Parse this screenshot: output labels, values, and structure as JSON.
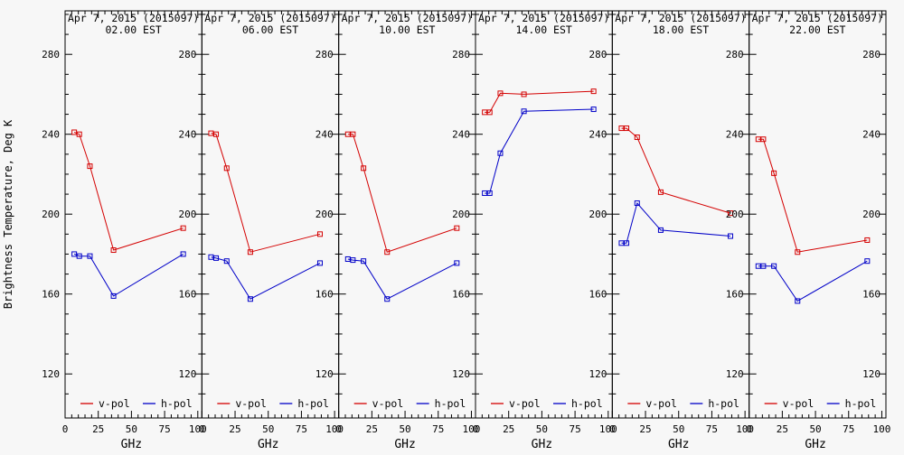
{
  "figure": {
    "ylabel": "Brightness Temperature, Deg K",
    "xlabel": "GHz",
    "legend": {
      "vpol_label": "v-pol",
      "hpol_label": "h-pol"
    },
    "colors": {
      "vpol": "#d40000",
      "hpol": "#0000c8",
      "frame": "#000000",
      "background": "#f7f7f7",
      "text": "#000000"
    }
  },
  "chart_data": [
    {
      "type": "line",
      "title": "Apr  7, 2015 (2015097)",
      "subtitle": "02.00 EST",
      "xlabel": "GHz",
      "ylabel": "Brightness Temperature, Deg K",
      "x": [
        6.9,
        10.7,
        18.7,
        36.5,
        89.0
      ],
      "xlim": [
        0,
        100
      ],
      "ylim": [
        100,
        300
      ],
      "xticks": [
        0,
        25,
        50,
        75,
        100
      ],
      "yticks": [
        120,
        160,
        200,
        240,
        280
      ],
      "legend_position": "bottom-inside",
      "grid": false,
      "series": [
        {
          "name": "v-pol",
          "color": "#d40000",
          "values": [
            241,
            240,
            224,
            182,
            193
          ]
        },
        {
          "name": "h-pol",
          "color": "#0000c8",
          "values": [
            180,
            179,
            179,
            159,
            180
          ]
        }
      ]
    },
    {
      "type": "line",
      "title": "Apr  7, 2015 (2015097)",
      "subtitle": "06.00 EST",
      "xlabel": "GHz",
      "ylabel": "Brightness Temperature, Deg K",
      "x": [
        6.9,
        10.7,
        18.7,
        36.5,
        89.0
      ],
      "xlim": [
        0,
        100
      ],
      "ylim": [
        100,
        300
      ],
      "xticks": [
        0,
        25,
        50,
        75,
        100
      ],
      "yticks": [
        120,
        160,
        200,
        240,
        280
      ],
      "legend_position": "bottom-inside",
      "grid": false,
      "series": [
        {
          "name": "v-pol",
          "color": "#d40000",
          "values": [
            240.5,
            240,
            223,
            181,
            190
          ]
        },
        {
          "name": "h-pol",
          "color": "#0000c8",
          "values": [
            178.5,
            178,
            176.5,
            157.5,
            175.5
          ]
        }
      ]
    },
    {
      "type": "line",
      "title": "Apr  7, 2015 (2015097)",
      "subtitle": "10.00 EST",
      "xlabel": "GHz",
      "ylabel": "Brightness Temperature, Deg K",
      "x": [
        6.9,
        10.7,
        18.7,
        36.5,
        89.0
      ],
      "xlim": [
        0,
        100
      ],
      "ylim": [
        100,
        300
      ],
      "xticks": [
        0,
        25,
        50,
        75,
        100
      ],
      "yticks": [
        120,
        160,
        200,
        240,
        280
      ],
      "legend_position": "bottom-inside",
      "grid": false,
      "series": [
        {
          "name": "v-pol",
          "color": "#d40000",
          "values": [
            240,
            240,
            223,
            181,
            193
          ]
        },
        {
          "name": "h-pol",
          "color": "#0000c8",
          "values": [
            177.5,
            177,
            176.5,
            157.5,
            175.5
          ]
        }
      ]
    },
    {
      "type": "line",
      "title": "Apr  7, 2015 (2015097)",
      "subtitle": "14.00 EST",
      "xlabel": "GHz",
      "ylabel": "Brightness Temperature, Deg K",
      "x": [
        6.9,
        10.7,
        18.7,
        36.5,
        89.0
      ],
      "xlim": [
        0,
        100
      ],
      "ylim": [
        100,
        300
      ],
      "xticks": [
        0,
        25,
        50,
        75,
        100
      ],
      "yticks": [
        120,
        160,
        200,
        240,
        280
      ],
      "legend_position": "bottom-inside",
      "grid": false,
      "series": [
        {
          "name": "v-pol",
          "color": "#d40000",
          "values": [
            251,
            251,
            260.5,
            260,
            261.5
          ]
        },
        {
          "name": "h-pol",
          "color": "#0000c8",
          "values": [
            210.5,
            210.5,
            230.5,
            251.5,
            252.5
          ]
        }
      ]
    },
    {
      "type": "line",
      "title": "Apr  7, 2015 (2015097)",
      "subtitle": "18.00 EST",
      "xlabel": "GHz",
      "ylabel": "Brightness Temperature, Deg K",
      "x": [
        6.9,
        10.7,
        18.7,
        36.5,
        89.0
      ],
      "xlim": [
        0,
        100
      ],
      "ylim": [
        100,
        300
      ],
      "xticks": [
        0,
        25,
        50,
        75,
        100
      ],
      "yticks": [
        120,
        160,
        200,
        240,
        280
      ],
      "legend_position": "bottom-inside",
      "grid": false,
      "series": [
        {
          "name": "v-pol",
          "color": "#d40000",
          "values": [
            243,
            243,
            238.5,
            211,
            200.5
          ]
        },
        {
          "name": "h-pol",
          "color": "#0000c8",
          "values": [
            185.5,
            185.5,
            205.5,
            192,
            189
          ]
        }
      ]
    },
    {
      "type": "line",
      "title": "Apr  7, 2015 (2015097)",
      "subtitle": "22.00 EST",
      "xlabel": "GHz",
      "ylabel": "Brightness Temperature, Deg K",
      "x": [
        6.9,
        10.7,
        18.7,
        36.5,
        89.0
      ],
      "xlim": [
        0,
        100
      ],
      "ylim": [
        100,
        300
      ],
      "xticks": [
        0,
        25,
        50,
        75,
        100
      ],
      "yticks": [
        120,
        160,
        200,
        240,
        280
      ],
      "legend_position": "bottom-inside",
      "grid": false,
      "series": [
        {
          "name": "v-pol",
          "color": "#d40000",
          "values": [
            237.5,
            237.5,
            220.5,
            181,
            187
          ]
        },
        {
          "name": "h-pol",
          "color": "#0000c8",
          "values": [
            174,
            174,
            174,
            156.5,
            176.5
          ]
        }
      ]
    }
  ]
}
